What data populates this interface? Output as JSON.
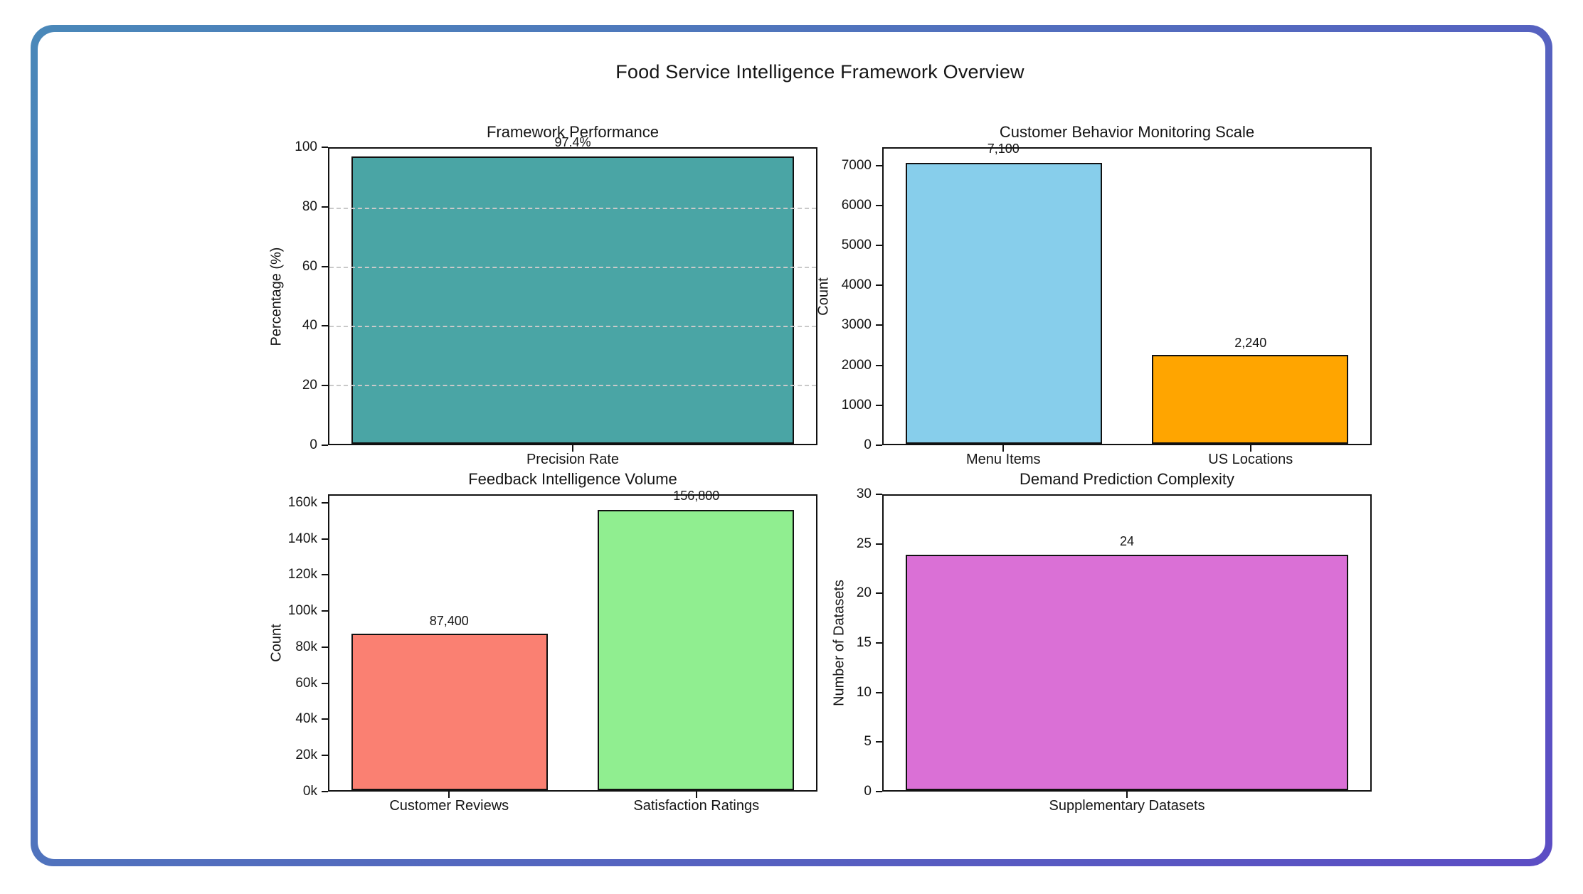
{
  "page": {
    "suptitle": "Food Service Intelligence Framework Overview",
    "border_gradient": [
      "#4a88b9",
      "#5c4dc4"
    ],
    "background": "#ffffff",
    "text_color": "#151515"
  },
  "chart_data": [
    {
      "type": "bar",
      "title": "Framework Performance",
      "ylabel": "Percentage (%)",
      "categories": [
        "Precision Rate"
      ],
      "values": [
        97.4
      ],
      "value_labels": [
        "97.4%"
      ],
      "bar_colors": [
        "#4aa5a5"
      ],
      "ylim": [
        0,
        100
      ],
      "yticks": [
        0,
        20,
        40,
        60,
        80,
        100
      ],
      "ytick_labels": [
        "0",
        "20",
        "40",
        "60",
        "80",
        "100"
      ],
      "grid": true,
      "legend": "none"
    },
    {
      "type": "bar",
      "title": "Customer Behavior Monitoring Scale",
      "ylabel": "Count",
      "categories": [
        "Menu Items",
        "US Locations"
      ],
      "values": [
        7100,
        2240
      ],
      "value_labels": [
        "7,100",
        "2,240"
      ],
      "bar_colors": [
        "#87ceeb",
        "#ffa500"
      ],
      "ylim": [
        0,
        7455
      ],
      "yticks": [
        0,
        1000,
        2000,
        3000,
        4000,
        5000,
        6000,
        7000
      ],
      "ytick_labels": [
        "0",
        "1000",
        "2000",
        "3000",
        "4000",
        "5000",
        "6000",
        "7000"
      ],
      "grid": false,
      "legend": "none"
    },
    {
      "type": "bar",
      "title": "Feedback Intelligence Volume",
      "ylabel": "Count",
      "categories": [
        "Customer Reviews",
        "Satisfaction Ratings"
      ],
      "values": [
        87400,
        156800
      ],
      "value_labels": [
        "87,400",
        "156,800"
      ],
      "bar_colors": [
        "#fa8072",
        "#90ee90"
      ],
      "ylim": [
        0,
        164640
      ],
      "yticks": [
        0,
        20000,
        40000,
        60000,
        80000,
        100000,
        120000,
        140000,
        160000
      ],
      "ytick_labels": [
        "0k",
        "20k",
        "40k",
        "60k",
        "80k",
        "100k",
        "120k",
        "140k",
        "160k"
      ],
      "grid": false,
      "legend": "none"
    },
    {
      "type": "bar",
      "title": "Demand Prediction Complexity",
      "ylabel": "Number of Datasets",
      "categories": [
        "Supplementary Datasets"
      ],
      "values": [
        24
      ],
      "value_labels": [
        "24"
      ],
      "bar_colors": [
        "#da70d6"
      ],
      "ylim": [
        0,
        30
      ],
      "yticks": [
        0,
        5,
        10,
        15,
        20,
        25,
        30
      ],
      "ytick_labels": [
        "0",
        "5",
        "10",
        "15",
        "20",
        "25",
        "30"
      ],
      "grid": false,
      "legend": "none"
    }
  ]
}
